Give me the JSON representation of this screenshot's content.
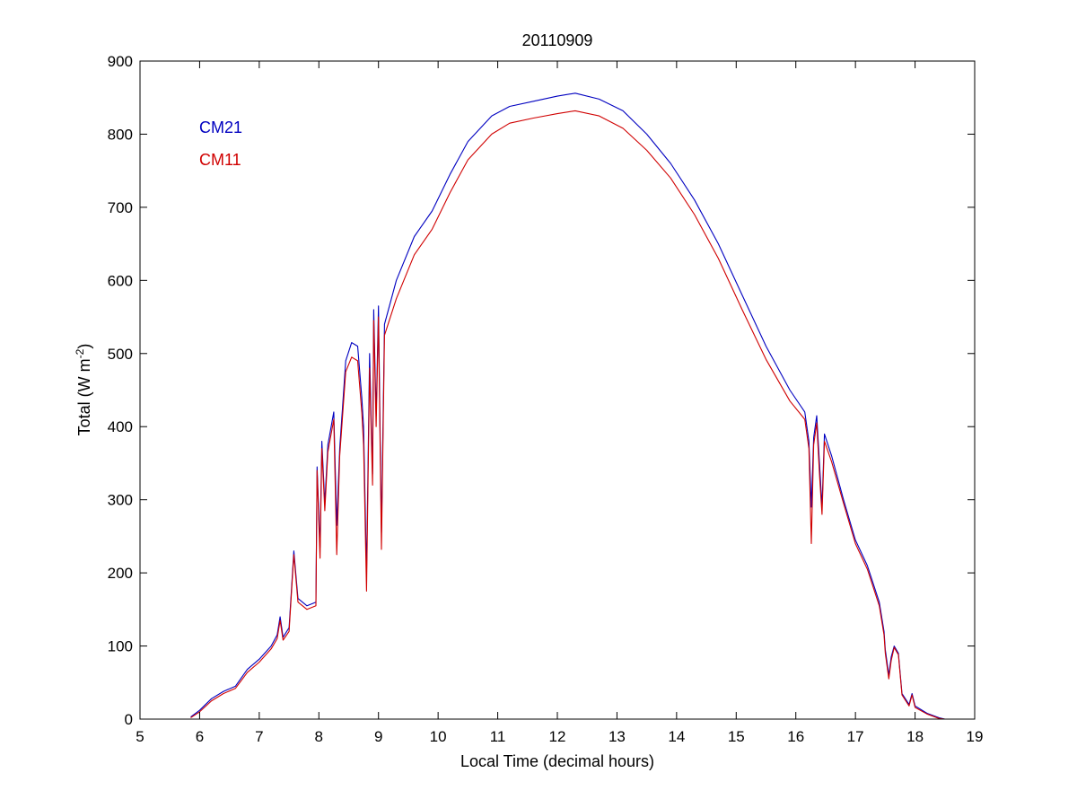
{
  "chart_data": {
    "type": "line",
    "title": "20110909",
    "xlabel": "Local Time (decimal hours)",
    "ylabel_main": "Total (W m",
    "ylabel_sup": "-2",
    "ylabel_close": ")",
    "xlim": [
      5,
      19
    ],
    "ylim": [
      0,
      900
    ],
    "xticks": [
      5,
      6,
      7,
      8,
      9,
      10,
      11,
      12,
      13,
      14,
      15,
      16,
      17,
      18,
      19
    ],
    "yticks": [
      0,
      100,
      200,
      300,
      400,
      500,
      600,
      700,
      800,
      900
    ],
    "grid": false,
    "legend_position": "top-left",
    "series": [
      {
        "name": "CM21",
        "color": "#0000c0",
        "points": [
          [
            5.85,
            3
          ],
          [
            6.0,
            12
          ],
          [
            6.2,
            28
          ],
          [
            6.4,
            38
          ],
          [
            6.6,
            45
          ],
          [
            6.8,
            68
          ],
          [
            7.0,
            82
          ],
          [
            7.2,
            100
          ],
          [
            7.3,
            115
          ],
          [
            7.35,
            140
          ],
          [
            7.4,
            112
          ],
          [
            7.5,
            125
          ],
          [
            7.58,
            230
          ],
          [
            7.65,
            165
          ],
          [
            7.8,
            155
          ],
          [
            7.95,
            160
          ],
          [
            7.97,
            345
          ],
          [
            8.02,
            235
          ],
          [
            8.05,
            380
          ],
          [
            8.1,
            295
          ],
          [
            8.15,
            375
          ],
          [
            8.25,
            420
          ],
          [
            8.3,
            265
          ],
          [
            8.35,
            370
          ],
          [
            8.45,
            490
          ],
          [
            8.55,
            515
          ],
          [
            8.65,
            510
          ],
          [
            8.72,
            440
          ],
          [
            8.75,
            400
          ],
          [
            8.8,
            200
          ],
          [
            8.85,
            500
          ],
          [
            8.9,
            335
          ],
          [
            8.92,
            560
          ],
          [
            8.96,
            415
          ],
          [
            9.0,
            565
          ],
          [
            9.05,
            255
          ],
          [
            9.1,
            540
          ],
          [
            9.3,
            600
          ],
          [
            9.6,
            660
          ],
          [
            9.9,
            695
          ],
          [
            10.2,
            745
          ],
          [
            10.5,
            790
          ],
          [
            10.9,
            825
          ],
          [
            11.2,
            838
          ],
          [
            11.6,
            845
          ],
          [
            12.0,
            852
          ],
          [
            12.3,
            856
          ],
          [
            12.7,
            848
          ],
          [
            13.1,
            832
          ],
          [
            13.5,
            800
          ],
          [
            13.9,
            760
          ],
          [
            14.3,
            710
          ],
          [
            14.7,
            650
          ],
          [
            15.1,
            580
          ],
          [
            15.5,
            510
          ],
          [
            15.9,
            450
          ],
          [
            16.15,
            420
          ],
          [
            16.22,
            380
          ],
          [
            16.26,
            290
          ],
          [
            16.3,
            385
          ],
          [
            16.35,
            415
          ],
          [
            16.4,
            345
          ],
          [
            16.44,
            290
          ],
          [
            16.48,
            390
          ],
          [
            16.6,
            360
          ],
          [
            16.8,
            300
          ],
          [
            17.0,
            245
          ],
          [
            17.2,
            210
          ],
          [
            17.4,
            160
          ],
          [
            17.48,
            120
          ],
          [
            17.5,
            95
          ],
          [
            17.56,
            60
          ],
          [
            17.6,
            85
          ],
          [
            17.65,
            100
          ],
          [
            17.72,
            90
          ],
          [
            17.78,
            35
          ],
          [
            17.9,
            20
          ],
          [
            17.95,
            35
          ],
          [
            18.0,
            18
          ],
          [
            18.2,
            8
          ],
          [
            18.4,
            2
          ],
          [
            18.5,
            0
          ]
        ]
      },
      {
        "name": "CM11",
        "color": "#d00000",
        "points": [
          [
            5.85,
            2
          ],
          [
            6.0,
            10
          ],
          [
            6.2,
            25
          ],
          [
            6.4,
            35
          ],
          [
            6.6,
            42
          ],
          [
            6.8,
            64
          ],
          [
            7.0,
            78
          ],
          [
            7.2,
            96
          ],
          [
            7.3,
            110
          ],
          [
            7.35,
            135
          ],
          [
            7.4,
            108
          ],
          [
            7.5,
            120
          ],
          [
            7.58,
            225
          ],
          [
            7.65,
            160
          ],
          [
            7.8,
            150
          ],
          [
            7.95,
            155
          ],
          [
            7.97,
            340
          ],
          [
            8.02,
            220
          ],
          [
            8.05,
            370
          ],
          [
            8.1,
            285
          ],
          [
            8.15,
            365
          ],
          [
            8.25,
            410
          ],
          [
            8.3,
            225
          ],
          [
            8.35,
            360
          ],
          [
            8.45,
            475
          ],
          [
            8.55,
            495
          ],
          [
            8.65,
            490
          ],
          [
            8.72,
            420
          ],
          [
            8.75,
            375
          ],
          [
            8.8,
            175
          ],
          [
            8.85,
            480
          ],
          [
            8.9,
            320
          ],
          [
            8.92,
            545
          ],
          [
            8.96,
            400
          ],
          [
            9.0,
            550
          ],
          [
            9.05,
            232
          ],
          [
            9.1,
            525
          ],
          [
            9.3,
            575
          ],
          [
            9.6,
            635
          ],
          [
            9.9,
            670
          ],
          [
            10.2,
            720
          ],
          [
            10.5,
            765
          ],
          [
            10.9,
            800
          ],
          [
            11.2,
            815
          ],
          [
            11.6,
            822
          ],
          [
            12.0,
            828
          ],
          [
            12.3,
            832
          ],
          [
            12.7,
            825
          ],
          [
            13.1,
            808
          ],
          [
            13.5,
            778
          ],
          [
            13.9,
            740
          ],
          [
            14.3,
            690
          ],
          [
            14.7,
            630
          ],
          [
            15.1,
            560
          ],
          [
            15.5,
            492
          ],
          [
            15.9,
            435
          ],
          [
            16.15,
            410
          ],
          [
            16.22,
            370
          ],
          [
            16.26,
            240
          ],
          [
            16.3,
            375
          ],
          [
            16.35,
            405
          ],
          [
            16.4,
            330
          ],
          [
            16.44,
            280
          ],
          [
            16.48,
            380
          ],
          [
            16.6,
            352
          ],
          [
            16.8,
            295
          ],
          [
            17.0,
            240
          ],
          [
            17.2,
            205
          ],
          [
            17.4,
            155
          ],
          [
            17.48,
            115
          ],
          [
            17.5,
            90
          ],
          [
            17.56,
            55
          ],
          [
            17.6,
            80
          ],
          [
            17.65,
            98
          ],
          [
            17.72,
            88
          ],
          [
            17.78,
            33
          ],
          [
            17.9,
            18
          ],
          [
            17.95,
            33
          ],
          [
            18.0,
            16
          ],
          [
            18.2,
            7
          ],
          [
            18.4,
            1
          ],
          [
            18.5,
            0
          ]
        ]
      }
    ]
  }
}
